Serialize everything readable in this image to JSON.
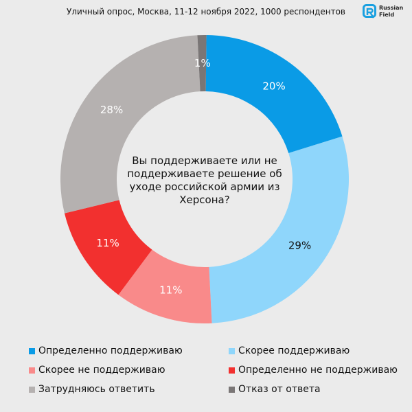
{
  "title": "Уличный опрос, Москва, 11-12 ноября 2022, 1000 респондентов",
  "logo": {
    "text": "Russian Field",
    "color": "#1aa0e0"
  },
  "chart_data": {
    "type": "pie",
    "donut": true,
    "center_text": "Вы поддерживаете или не поддерживаете решение об уходе российской армии из Херсона?",
    "legend_placement": "bottom",
    "slices": [
      {
        "name": "Определенно поддерживаю",
        "value": 20,
        "label": "20%",
        "color": "#0a9be6"
      },
      {
        "name": "Скорее поддерживаю",
        "value": 29,
        "label": "29%",
        "color": "#8fd6fb"
      },
      {
        "name": "Скорее не поддерживаю",
        "value": 11,
        "label": "11%",
        "color": "#f98a8a"
      },
      {
        "name": "Определенно не поддерживаю",
        "value": 11,
        "label": "11%",
        "color": "#f2302f"
      },
      {
        "name": "Затрудняюсь ответить",
        "value": 28,
        "label": "28%",
        "color": "#b5b1b0"
      },
      {
        "name": "Отказ от ответа",
        "value": 1,
        "label": "1%",
        "color": "#7a7676"
      }
    ]
  }
}
